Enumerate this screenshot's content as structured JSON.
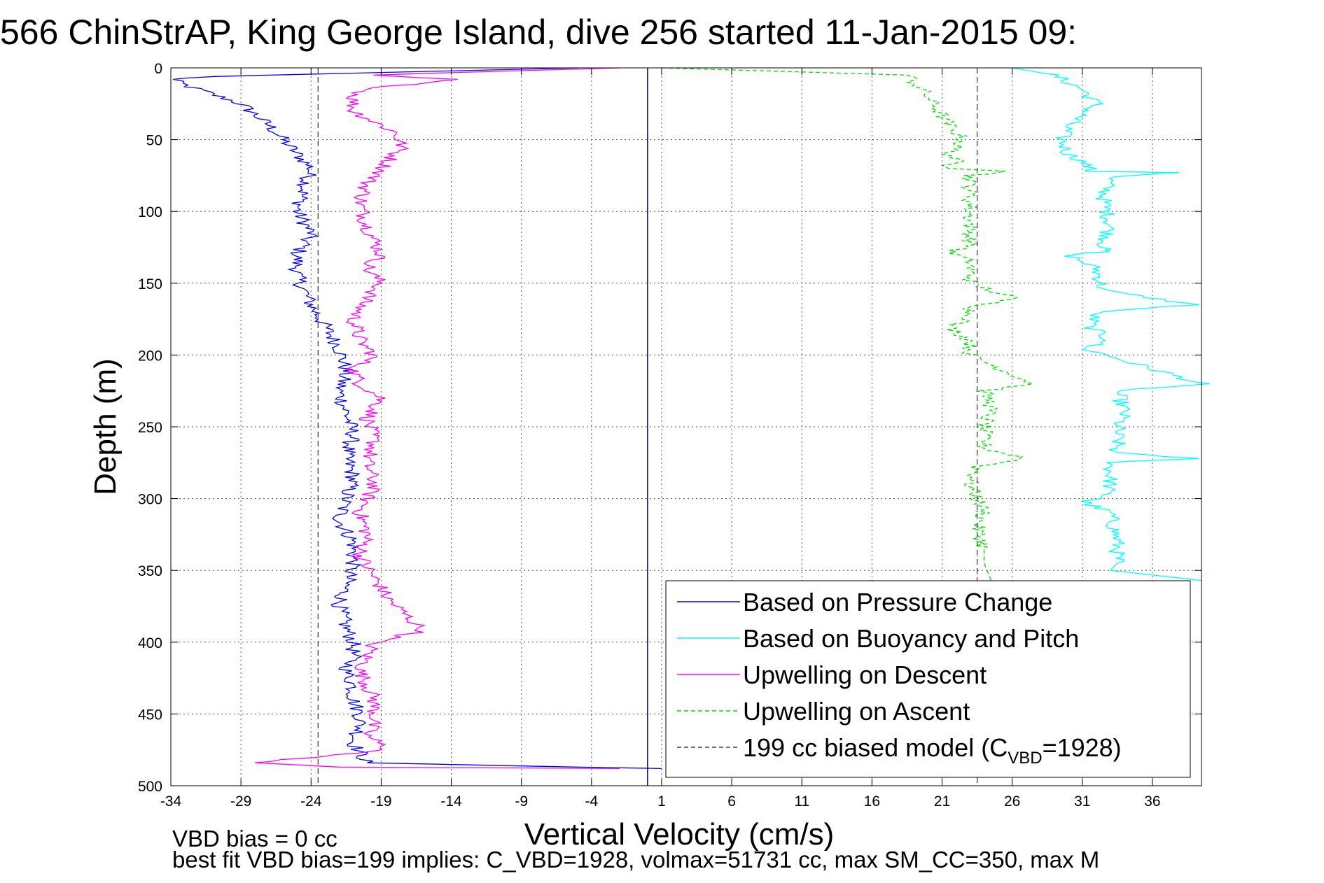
{
  "chart_data": {
    "type": "line",
    "title": "566 ChinStrAP, King George Island, dive 256 started 11-Jan-2015 09:",
    "xlabel": "Vertical Velocity (cm/s)",
    "ylabel": "Depth (m)",
    "xlim": [
      -34,
      39.5
    ],
    "ylim": [
      0,
      500
    ],
    "y_reversed": true,
    "grid": true,
    "x_ticks": [
      -34,
      -29,
      -24,
      -19,
      -14,
      -9,
      -4,
      1,
      6,
      11,
      16,
      21,
      26,
      31,
      36
    ],
    "y_ticks": [
      0,
      50,
      100,
      150,
      200,
      250,
      300,
      350,
      400,
      450,
      500
    ],
    "legend_position": "bottom-right",
    "series": [
      {
        "name": "Based on Pressure Change",
        "color": "#0000ff",
        "style": "solid",
        "x": [
          -5,
          -31,
          -34,
          -33,
          -29,
          -27,
          -26,
          -25,
          -24,
          -24.5,
          -25,
          -24,
          -25,
          -25,
          -24.5,
          -24,
          -23,
          -22,
          -21.5,
          -22,
          -21.5,
          -21,
          -21.5,
          -21,
          -21.5,
          -22,
          -21,
          -21,
          -21.5,
          -22,
          -21.5,
          -21,
          -21,
          -21.5,
          -21,
          -21,
          -20.5,
          -20.5,
          -21,
          -20,
          -5,
          1
        ],
        "y": [
          0,
          6,
          8,
          12,
          25,
          40,
          50,
          60,
          70,
          85,
          100,
          115,
          130,
          145,
          155,
          165,
          180,
          195,
          210,
          225,
          240,
          255,
          270,
          285,
          300,
          315,
          330,
          345,
          360,
          375,
          390,
          400,
          410,
          420,
          430,
          440,
          450,
          460,
          470,
          484,
          487,
          488
        ]
      },
      {
        "name": "Based on Buoyancy and Pitch",
        "color": "#00ffff",
        "style": "solid",
        "x": [
          26,
          29,
          30,
          31,
          32,
          30,
          29.5,
          30,
          31,
          31.5,
          31.5,
          38,
          33,
          32.5,
          33,
          32.5,
          32.5,
          30,
          32,
          32.5,
          39,
          32,
          31.5,
          33,
          31,
          39.5,
          33.5,
          34,
          33.5,
          33.5,
          33,
          39,
          33,
          33,
          32.5,
          31,
          33,
          33.5,
          33.5,
          33,
          39.5
        ],
        "y": [
          0,
          5,
          10,
          15,
          25,
          40,
          50,
          60,
          65,
          70,
          72,
          73,
          76,
          90,
          110,
          125,
          128,
          130,
          140,
          155,
          165,
          170,
          180,
          190,
          195,
          220,
          225,
          240,
          250,
          265,
          268,
          272,
          275,
          290,
          300,
          302,
          310,
          330,
          345,
          350,
          357
        ]
      },
      {
        "name": "Upwelling on Descent",
        "color": "#ff00ff",
        "style": "solid",
        "x": [
          -2,
          -20,
          -14,
          -20,
          -21,
          -21,
          -18,
          -17.5,
          -18.5,
          -19,
          -20,
          -20.5,
          -20,
          -19,
          -20,
          -19,
          -20,
          -21,
          -20.5,
          -19.5,
          -21,
          -20.5,
          -19,
          -20,
          -19.5,
          -20,
          -19.5,
          -20.5,
          -20,
          -20.5,
          -19.5,
          -18.5,
          -16,
          -19.5,
          -20.5,
          -19.5,
          -19.5,
          -20,
          -18.5,
          -28,
          -22,
          -2
        ],
        "y": [
          0,
          5,
          8,
          15,
          20,
          30,
          45,
          55,
          65,
          72,
          80,
          95,
          110,
          130,
          140,
          150,
          160,
          175,
          190,
          200,
          210,
          220,
          230,
          245,
          260,
          275,
          290,
          310,
          325,
          340,
          355,
          370,
          392,
          400,
          420,
          440,
          455,
          465,
          475,
          484,
          487,
          488
        ]
      },
      {
        "name": "Upwelling on Ascent",
        "color": "#00dd00",
        "style": "dashed",
        "x": [
          1,
          18.5,
          19,
          20,
          21.5,
          22.5,
          21.5,
          22,
          21.5,
          22,
          26,
          23,
          23,
          23,
          23,
          21.5,
          23,
          23,
          26,
          23,
          23,
          21.5,
          23,
          23,
          23,
          27.5,
          24,
          24.5,
          24,
          24,
          27,
          23.5,
          23,
          23.5,
          24,
          23.5,
          24,
          24,
          24.5
        ],
        "y": [
          0,
          5,
          10,
          20,
          40,
          50,
          60,
          65,
          68,
          70,
          72,
          75,
          90,
          110,
          125,
          128,
          135,
          150,
          160,
          168,
          175,
          180,
          190,
          195,
          200,
          220,
          225,
          235,
          250,
          265,
          272,
          278,
          290,
          300,
          310,
          320,
          335,
          345,
          357
        ]
      },
      {
        "name": "199 cc biased model (C",
        "name_sub": "VBD",
        "name_tail": "=1928)",
        "color": "#404040",
        "style": "dashed",
        "x": [
          -23.5,
          -23.5
        ],
        "y": [
          0,
          500
        ]
      },
      {
        "name": "",
        "color": "#404040",
        "style": "dashed",
        "legend": false,
        "x": [
          23.5,
          23.5
        ],
        "y": [
          0,
          500
        ]
      }
    ],
    "reference_lines": [
      {
        "type": "vertical",
        "x": 0,
        "color": "#000066"
      }
    ]
  },
  "notes": {
    "bias_line": "VBD bias = 0 cc",
    "fit_line": "best fit VBD bias=199 implies: C_VBD=1928, volmax=51731 cc, max SM_CC=350, max M"
  }
}
